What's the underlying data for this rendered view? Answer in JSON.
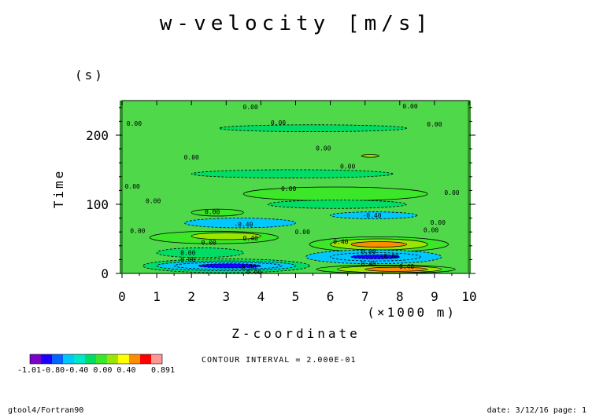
{
  "chart_data": {
    "type": "heatmap",
    "title": "w-velocity [m/s]",
    "xlabel": "Z-coordinate",
    "x_unit": "(×1000 m)",
    "ylabel": "Time",
    "y_unit": "(s)",
    "xlim": [
      0,
      10
    ],
    "ylim": [
      0,
      250
    ],
    "x_ticks": [
      "0",
      "1",
      "2",
      "3",
      "4",
      "5",
      "6",
      "7",
      "8",
      "9",
      "10"
    ],
    "y_ticks": [
      "0",
      "100",
      "200"
    ],
    "contour_interval_text": "CONTOUR INTERVAL = 2.000E-01",
    "colorbar": {
      "levels_text": "-1.01-0.80-0.40 0.00 0.40",
      "max_text": "0.891",
      "colors": [
        "#7b00c8",
        "#1c00ff",
        "#0064ff",
        "#00c8ff",
        "#00e6c8",
        "#00dc64",
        "#3ce628",
        "#9ae600",
        "#ffff00",
        "#ff8c00",
        "#ff0000",
        "#ff9696"
      ]
    },
    "background_color": "#4fd84a",
    "features": [
      {
        "z": [
          2.8,
          8.2
        ],
        "t": [
          205,
          215
        ],
        "value": -0.2
      },
      {
        "z": [
          2.0,
          7.8
        ],
        "t": [
          138,
          150
        ],
        "value": -0.2
      },
      {
        "z": [
          6.9,
          7.4
        ],
        "t": [
          168,
          172
        ],
        "value": 0.4
      },
      {
        "z": [
          3.5,
          8.8
        ],
        "t": [
          105,
          125
        ],
        "value": 0.2
      },
      {
        "z": [
          4.2,
          8.2
        ],
        "t": [
          94,
          106
        ],
        "value": -0.2
      },
      {
        "z": [
          6.0,
          8.5
        ],
        "t": [
          79,
          89
        ],
        "value": -0.4
      },
      {
        "z": [
          2.0,
          3.5
        ],
        "t": [
          83,
          93
        ],
        "value": 0.2
      },
      {
        "z": [
          1.8,
          5.0
        ],
        "t": [
          66,
          80
        ],
        "value": -0.4
      },
      {
        "z": [
          0.8,
          4.5
        ],
        "t": [
          43,
          61
        ],
        "value": 0.2
      },
      {
        "z": [
          2.0,
          4.0
        ],
        "t": [
          49,
          59
        ],
        "value": 0.4
      },
      {
        "z": [
          5.4,
          9.4
        ],
        "t": [
          31,
          53
        ],
        "value": 0.2
      },
      {
        "z": [
          6.0,
          8.8
        ],
        "t": [
          34,
          50
        ],
        "value": 0.4
      },
      {
        "z": [
          6.6,
          8.2
        ],
        "t": [
          38,
          46
        ],
        "value": 0.6
      },
      {
        "z": [
          1.0,
          3.5
        ],
        "t": [
          23,
          37
        ],
        "value": -0.2
      },
      {
        "z": [
          5.3,
          9.2
        ],
        "t": [
          14,
          34
        ],
        "value": -0.4
      },
      {
        "z": [
          6.0,
          8.6
        ],
        "t": [
          18,
          30
        ],
        "value": -0.6
      },
      {
        "z": [
          6.6,
          8.0
        ],
        "t": [
          21,
          27
        ],
        "value": -0.8
      },
      {
        "z": [
          0.6,
          5.4
        ],
        "t": [
          1,
          21
        ],
        "value": -0.2
      },
      {
        "z": [
          1.0,
          5.0
        ],
        "t": [
          4,
          18
        ],
        "value": -0.4
      },
      {
        "z": [
          1.5,
          4.6
        ],
        "t": [
          6,
          16
        ],
        "value": -0.6
      },
      {
        "z": [
          2.2,
          4.0
        ],
        "t": [
          8,
          14
        ],
        "value": -0.8
      },
      {
        "z": [
          5.6,
          9.6
        ],
        "t": [
          0,
          12
        ],
        "value": 0.2
      },
      {
        "z": [
          6.2,
          9.2
        ],
        "t": [
          1,
          11
        ],
        "value": 0.4
      },
      {
        "z": [
          7.0,
          8.8
        ],
        "t": [
          3,
          9
        ],
        "value": 0.6
      }
    ],
    "contour_labels": [
      {
        "z": 3.7,
        "t": 241,
        "text": "0.00"
      },
      {
        "z": 8.3,
        "t": 242,
        "text": "0.00"
      },
      {
        "z": 0.35,
        "t": 217,
        "text": "0.00"
      },
      {
        "z": 4.5,
        "t": 218,
        "text": "0.00"
      },
      {
        "z": 9.0,
        "t": 216,
        "text": "0.00"
      },
      {
        "z": 5.8,
        "t": 181,
        "text": "0.00"
      },
      {
        "z": 2.0,
        "t": 168,
        "text": "0.00"
      },
      {
        "z": 6.5,
        "t": 155,
        "text": "0.00"
      },
      {
        "z": 0.3,
        "t": 126,
        "text": "0.00"
      },
      {
        "z": 4.8,
        "t": 123,
        "text": "0.00"
      },
      {
        "z": 9.5,
        "t": 117,
        "text": "0.00"
      },
      {
        "z": 0.9,
        "t": 105,
        "text": "0.00"
      },
      {
        "z": 2.6,
        "t": 89,
        "text": "0.00"
      },
      {
        "z": 7.2,
        "t": 84,
        "text": "-0.40"
      },
      {
        "z": 9.1,
        "t": 74,
        "text": "0.00"
      },
      {
        "z": 3.5,
        "t": 71,
        "text": "-0.40"
      },
      {
        "z": 0.45,
        "t": 62,
        "text": "0.00"
      },
      {
        "z": 5.2,
        "t": 60,
        "text": "0.00"
      },
      {
        "z": 8.9,
        "t": 63,
        "text": "0.00"
      },
      {
        "z": 3.7,
        "t": 51,
        "text": "0.40"
      },
      {
        "z": 2.5,
        "t": 45,
        "text": "0.00"
      },
      {
        "z": 6.3,
        "t": 46,
        "text": "0.40"
      },
      {
        "z": 1.9,
        "t": 30,
        "text": "0.00"
      },
      {
        "z": 7.1,
        "t": 32,
        "text": "0.00"
      },
      {
        "z": 1.9,
        "t": 20,
        "text": "0.00"
      },
      {
        "z": 3.6,
        "t": 9,
        "text": "-0.80"
      },
      {
        "z": 7.7,
        "t": 25,
        "text": "-0.80"
      },
      {
        "z": 7.1,
        "t": 14,
        "text": "0.40"
      },
      {
        "z": 8.2,
        "t": 10,
        "text": "0.40"
      },
      {
        "z": 3.8,
        "t": 2,
        "text": "0.00"
      }
    ]
  },
  "footer": {
    "left": "gtool4/Fortran90",
    "right": "date: 3/12/16 page: 1"
  }
}
